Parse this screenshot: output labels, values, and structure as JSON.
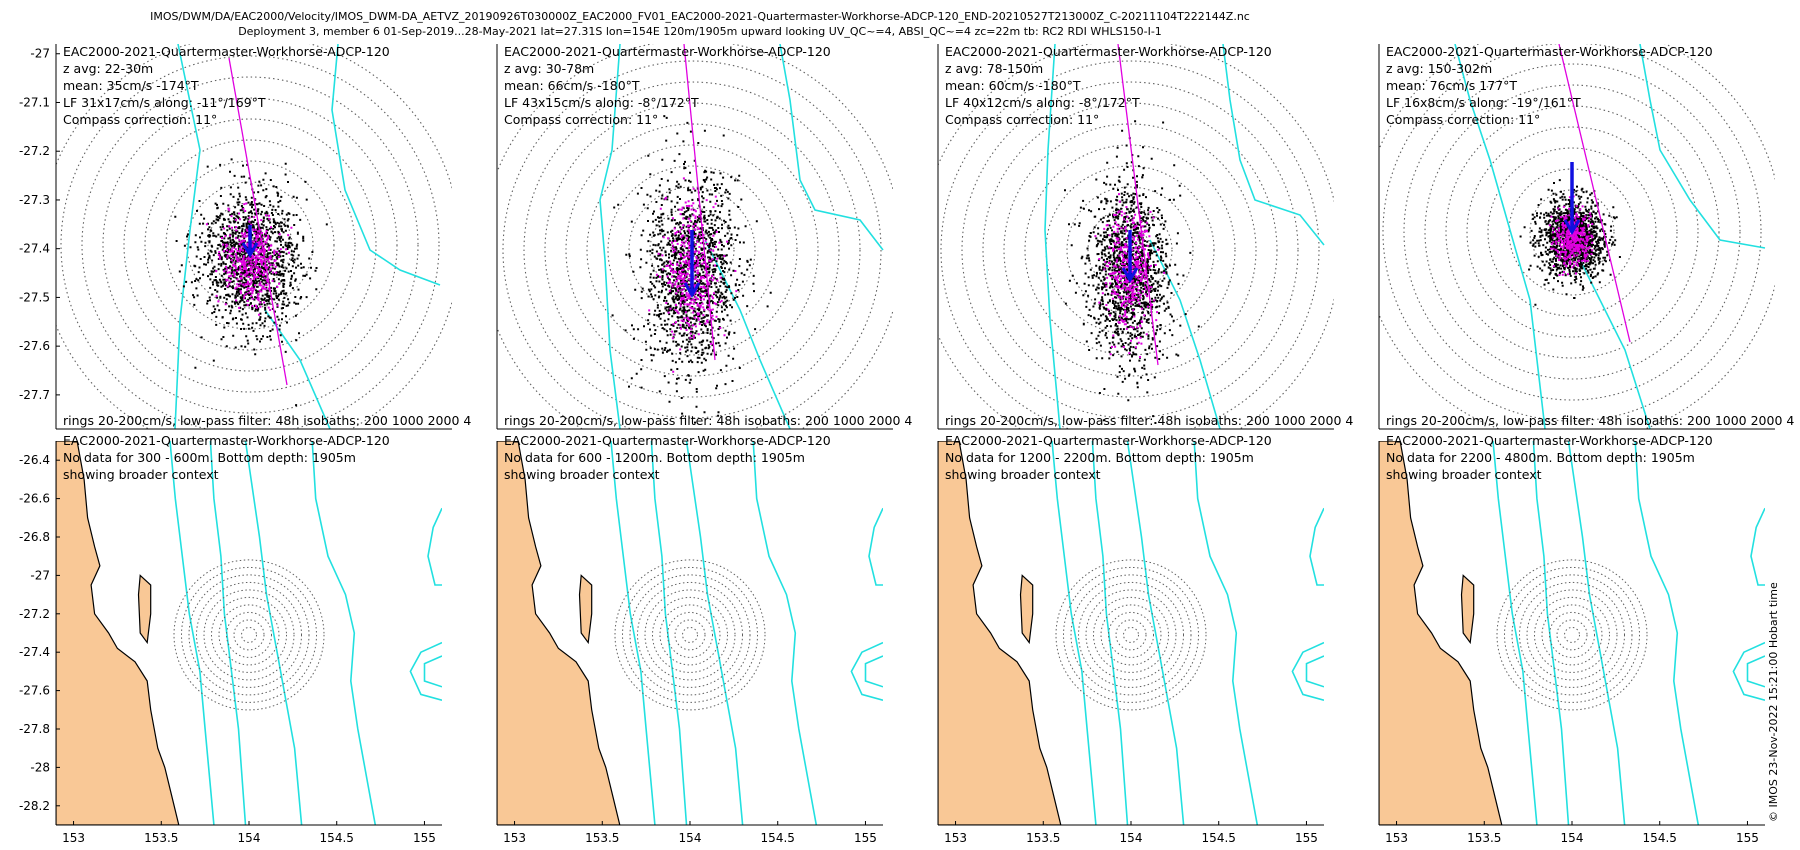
{
  "figure": {
    "title_line1": "IMOS/DWM/DA/EAC2000/Velocity/IMOS_DWM-DA_AETVZ_20190926T030000Z_EAC2000_FV01_EAC2000-2021-Quartermaster-Workhorse-ADCP-120_END-20210527T213000Z_C-20211104T222144Z.nc",
    "title_line2": "Deployment 3, member 6 01-Sep-2019...28-May-2021 lat=27.31S lon=154E 120m/1905m upward looking UV_QC~=4, ABSI_QC~=4 zc=22m tb: RC2 RDI WHLS150-I-1",
    "side_stamp": "© IMOS 23-Nov-2022 15:21:00 Hobart time"
  },
  "colors": {
    "isobath": "#22e0e0",
    "major_axis": "#e000e0",
    "mean_arrow": "#1010e0",
    "scatter_black": "#000000",
    "scatter_magenta": "#e000e0",
    "land": "#f9c896",
    "coast": "#000000",
    "rings": "#606060"
  },
  "chart_data": [
    {
      "type": "scatter",
      "panel": "top-1",
      "ylim": [
        -27.77,
        -26.98
      ],
      "yticks": [
        "-27",
        "-27.1",
        "-27.2",
        "-27.3",
        "-27.4",
        "-27.5",
        "-27.6",
        "-27.7"
      ],
      "annotations": [
        "EAC2000-2021-Quartermaster-Workhorse-ADCP-120",
        "z avg: 22-30m",
        "mean: 35cm/s -174°T",
        "LF 31x17cm/s along: -11°/169°T",
        "Compass correction: 11°"
      ],
      "footer": "rings 20-200cm/s, low-pass filter: 48h isobaths: 200 1000 2000 4",
      "mean_speed_cms": 35,
      "mean_dir_deg": -174,
      "ellipse_major_cms": 31,
      "ellipse_minor_cms": 17,
      "along_axis_deg": -11
    },
    {
      "type": "scatter",
      "panel": "top-2",
      "annotations": [
        "EAC2000-2021-Quartermaster-Workhorse-ADCP-120",
        "z avg: 30-78m",
        "mean: 66cm/s -180°T",
        "LF 43x15cm/s along: -8°/172°T",
        "Compass correction: 11°"
      ],
      "footer": "rings 20-200cm/s, low-pass filter: 48h isobaths: 200 1000 2000 4",
      "mean_speed_cms": 66,
      "mean_dir_deg": -180,
      "ellipse_major_cms": 43,
      "ellipse_minor_cms": 15,
      "along_axis_deg": -8
    },
    {
      "type": "scatter",
      "panel": "top-3",
      "annotations": [
        "EAC2000-2021-Quartermaster-Workhorse-ADCP-120",
        "z avg: 78-150m",
        "mean: 60cm/s -180°T",
        "LF 40x12cm/s along: -8°/172°T",
        "Compass correction: 11°"
      ],
      "footer": "rings 20-200cm/s, low-pass filter: 48h isobaths: 200 1000 2000 4",
      "mean_speed_cms": 60,
      "mean_dir_deg": -180,
      "ellipse_major_cms": 40,
      "ellipse_minor_cms": 12,
      "along_axis_deg": -8
    },
    {
      "type": "scatter",
      "panel": "top-4",
      "annotations": [
        "EAC2000-2021-Quartermaster-Workhorse-ADCP-120",
        "z avg: 150-302m",
        "mean: 76cm/s 177°T",
        "LF 16x8cm/s along: -19°/161°T",
        "Compass correction: 11°"
      ],
      "footer": "rings 20-200cm/s, low-pass filter: 48h isobaths: 200 1000 2000 4",
      "mean_speed_cms": 76,
      "mean_dir_deg": 177,
      "ellipse_major_cms": 16,
      "ellipse_minor_cms": 8,
      "along_axis_deg": -19
    },
    {
      "type": "map",
      "panel": "bottom-1",
      "xlim": [
        152.9,
        155.1
      ],
      "ylim": [
        -28.3,
        -26.3
      ],
      "xticks": [
        "153",
        "153.5",
        "154",
        "154.5",
        "155"
      ],
      "yticks": [
        "-26.4",
        "-26.6",
        "-26.8",
        "-27",
        "-27.2",
        "-27.4",
        "-27.6",
        "-27.8",
        "-28",
        "-28.2"
      ],
      "annotations": [
        "EAC2000-2021-Quartermaster-Workhorse-ADCP-120",
        "No data for 300 - 600m. Bottom depth: 1905m",
        "showing broader context"
      ]
    },
    {
      "type": "map",
      "panel": "bottom-2",
      "xticks": [
        "153",
        "153.5",
        "154",
        "154.5",
        "155"
      ],
      "annotations": [
        "EAC2000-2021-Quartermaster-Workhorse-ADCP-120",
        "No data for 600 - 1200m. Bottom depth: 1905m",
        "showing broader context"
      ]
    },
    {
      "type": "map",
      "panel": "bottom-3",
      "xticks": [
        "153",
        "153.5",
        "154",
        "154.5",
        "155"
      ],
      "annotations": [
        "EAC2000-2021-Quartermaster-Workhorse-ADCP-120",
        "No data for 1200 - 2200m. Bottom depth: 1905m",
        "showing broader context"
      ]
    },
    {
      "type": "map",
      "panel": "bottom-4",
      "xticks": [
        "153",
        "153.5",
        "154",
        "154.5",
        "155"
      ],
      "annotations": [
        "EAC2000-2021-Quartermaster-Workhorse-ADCP-120",
        "No data for 2200 - 4800m. Bottom depth: 1905m",
        "showing broader context"
      ]
    }
  ]
}
